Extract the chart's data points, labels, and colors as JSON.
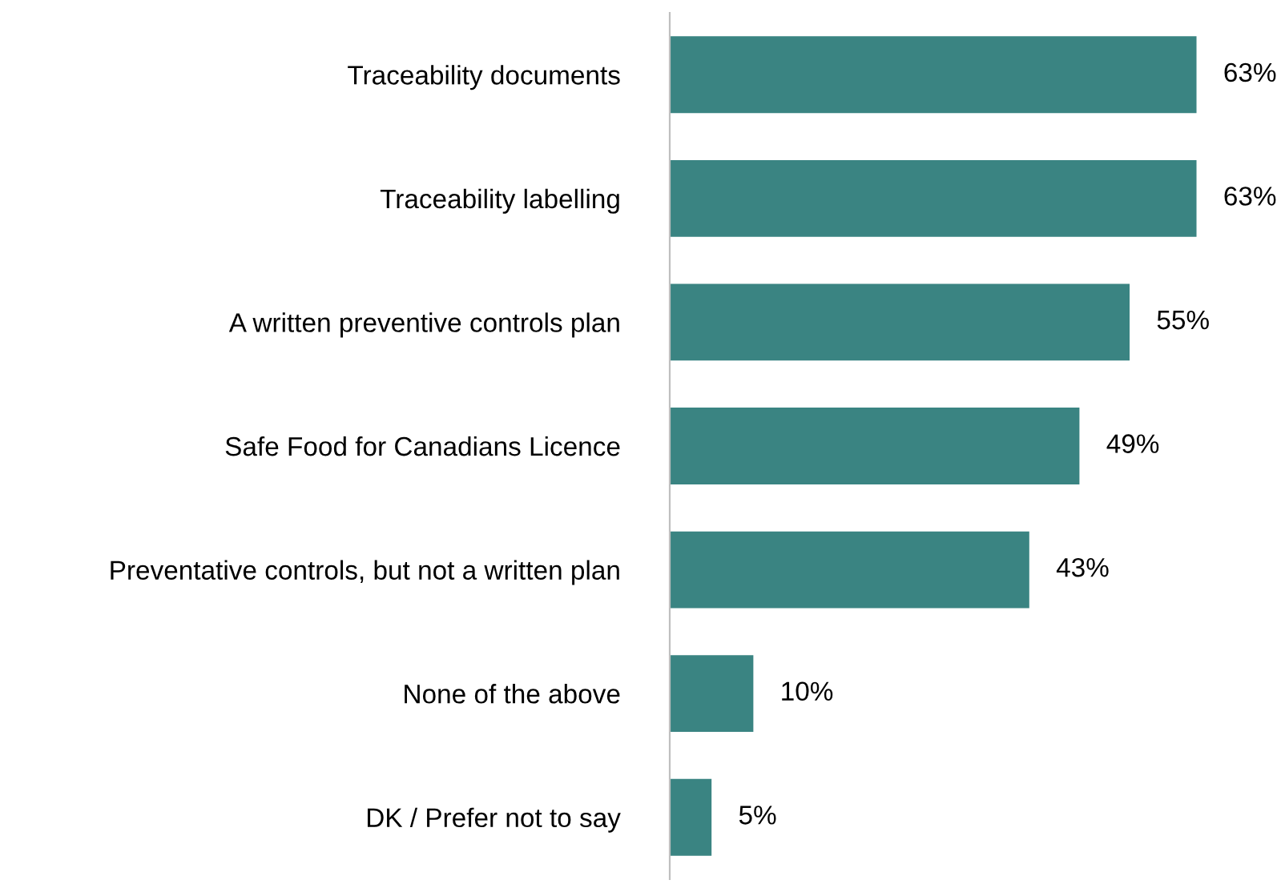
{
  "chart_data": {
    "type": "bar",
    "orientation": "horizontal",
    "categories": [
      "Traceability documents",
      "Traceability labelling",
      "A written preventive controls plan",
      "Safe Food for Canadians Licence",
      "Preventative controls, but not a written plan",
      "None of the above",
      "DK / Prefer not to say"
    ],
    "values": [
      63,
      63,
      55,
      49,
      43,
      10,
      5
    ],
    "value_labels": [
      "63%",
      "63%",
      "55%",
      "49%",
      "43%",
      "10%",
      "5%"
    ],
    "color": "#3a8482",
    "grid": false,
    "legend": false
  }
}
